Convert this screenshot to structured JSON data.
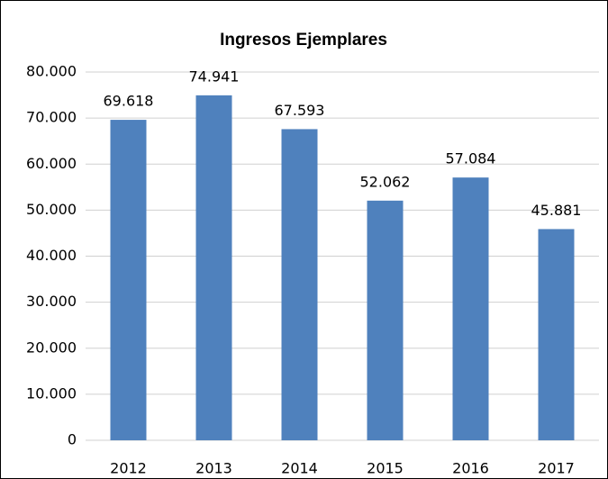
{
  "chart_data": {
    "type": "bar",
    "title": "Ingresos Ejemplares",
    "categories": [
      "2012",
      "2013",
      "2014",
      "2015",
      "2016",
      "2017"
    ],
    "values": [
      69618,
      74941,
      67593,
      52062,
      57084,
      45881
    ],
    "value_labels": [
      "69.618",
      "74.941",
      "67.593",
      "52.062",
      "57.084",
      "45.881"
    ],
    "color": "#4f81bd",
    "ylim": [
      0,
      80000
    ],
    "yticks": [
      0,
      {
        "value": 10000,
        "label": "10.000"
      },
      {
        "value": 20000,
        "label": "20.000"
      },
      {
        "value": 30000,
        "label": "30.000"
      },
      {
        "value": 40000,
        "label": "40.000"
      },
      {
        "value": 50000,
        "label": "50.000"
      },
      {
        "value": 60000,
        "label": "60.000"
      },
      {
        "value": 70000,
        "label": "70.000"
      },
      {
        "value": 80000,
        "label": "80.000"
      }
    ],
    "grid": true
  }
}
